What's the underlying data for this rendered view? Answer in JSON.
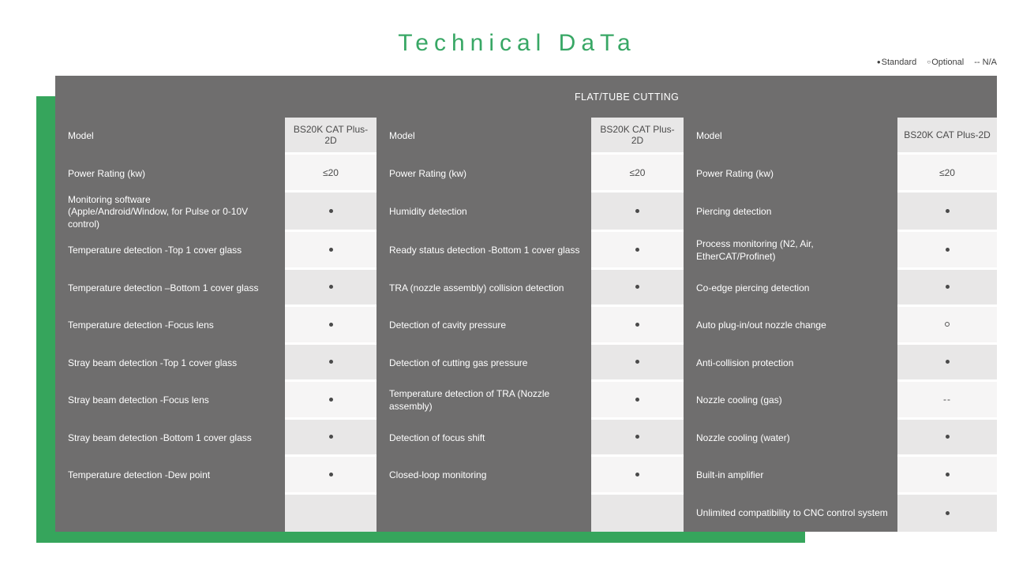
{
  "page": {
    "title": "Technical DaTa"
  },
  "colors": {
    "accent_title": "#38A765",
    "accent_bar": "#36A55C",
    "table_gray": "#6F6E6E",
    "cell_dark": "#E8E7E7",
    "cell_light": "#F6F5F5",
    "standard_dot": "#4A4A4A"
  },
  "legend": {
    "items": [
      {
        "symbol": "●",
        "label": "Standard"
      },
      {
        "symbol": "○",
        "label": "Optional"
      },
      {
        "symbol": "--",
        "label": " N/A"
      }
    ]
  },
  "table": {
    "header": "FLAT/TUBE CUTTING",
    "model_name": "BS20K CAT Plus-2D",
    "groups": [
      {
        "rows": [
          {
            "label": "Model",
            "value": "BS20K CAT Plus-2D"
          },
          {
            "label": "Power Rating (kw)",
            "value": "≤20"
          },
          {
            "label": "Monitoring software\n(Apple/Android/Window, for Pulse or 0-10V control)",
            "value": "●"
          },
          {
            "label": "Temperature detection -Top 1 cover glass",
            "value": "●"
          },
          {
            "label": "Temperature detection –Bottom 1 cover glass",
            "value": "●"
          },
          {
            "label": "Temperature detection -Focus lens",
            "value": "●"
          },
          {
            "label": "Stray beam detection -Top 1 cover glass",
            "value": "●"
          },
          {
            "label": "Stray beam detection -Focus lens",
            "value": "●"
          },
          {
            "label": "Stray beam detection -Bottom 1 cover glass",
            "value": "●"
          },
          {
            "label": "Temperature detection -Dew point",
            "value": "●"
          },
          {
            "label": "",
            "value": ""
          }
        ]
      },
      {
        "rows": [
          {
            "label": "Model",
            "value": "BS20K CAT Plus-2D"
          },
          {
            "label": "Power Rating (kw)",
            "value": "≤20"
          },
          {
            "label": "Humidity detection",
            "value": "●"
          },
          {
            "label": "Ready status detection -Bottom 1 cover glass",
            "value": "●"
          },
          {
            "label": "TRA (nozzle assembly) collision detection",
            "value": "●"
          },
          {
            "label": "Detection of cavity pressure",
            "value": "●"
          },
          {
            "label": "Detection of cutting gas pressure",
            "value": "●"
          },
          {
            "label": "Temperature detection of TRA (Nozzle assembly)",
            "value": "●"
          },
          {
            "label": "Detection of focus shift",
            "value": "●"
          },
          {
            "label": "Closed-loop monitoring",
            "value": "●"
          },
          {
            "label": "",
            "value": ""
          }
        ]
      },
      {
        "rows": [
          {
            "label": "Model",
            "value": "BS20K CAT Plus-2D"
          },
          {
            "label": "Power Rating (kw)",
            "value": "≤20"
          },
          {
            "label": "Piercing detection",
            "value": "●"
          },
          {
            "label": "Process monitoring (N2, Air, EtherCAT/Profinet)",
            "value": "●"
          },
          {
            "label": "Co-edge piercing detection",
            "value": "●"
          },
          {
            "label": "Auto plug-in/out nozzle change",
            "value": "○"
          },
          {
            "label": "Anti-collision protection",
            "value": "●"
          },
          {
            "label": "Nozzle cooling (gas)",
            "value": "--"
          },
          {
            "label": "Nozzle cooling (water)",
            "value": "●"
          },
          {
            "label": "Built-in amplifier",
            "value": "●"
          },
          {
            "label": "Unlimited compatibility to CNC control system",
            "value": "●"
          }
        ]
      }
    ]
  }
}
